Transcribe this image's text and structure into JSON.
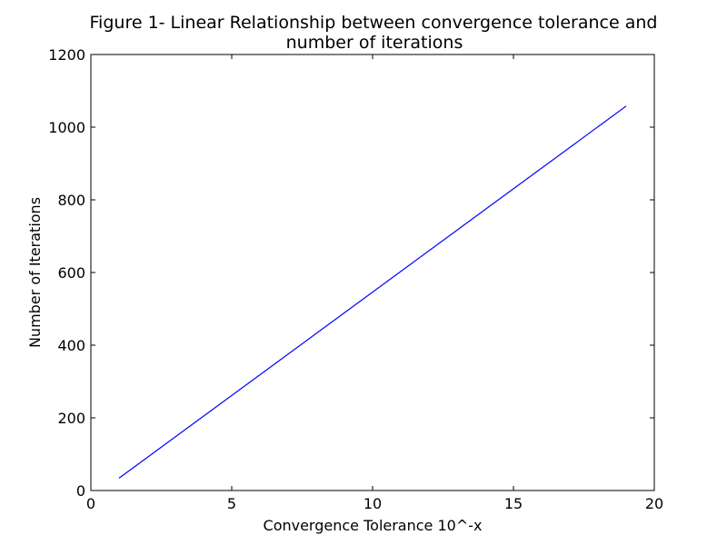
{
  "chart_data": {
    "type": "line",
    "title_lines": [
      "Figure 1- Linear Relationship between convergence tolerance and",
      "number of iterations"
    ],
    "xlabel": "Convergence Tolerance 10^-x",
    "ylabel": "Number of Iterations",
    "xlim": [
      0,
      20
    ],
    "ylim": [
      0,
      1200
    ],
    "x_ticks": [
      0,
      5,
      10,
      15,
      20
    ],
    "y_ticks": [
      0,
      200,
      400,
      600,
      800,
      1000,
      1200
    ],
    "grid": false,
    "legend": "none",
    "series": [
      {
        "color": "#0000ff",
        "x": [
          1,
          19
        ],
        "y": [
          34,
          1058
        ]
      }
    ]
  }
}
